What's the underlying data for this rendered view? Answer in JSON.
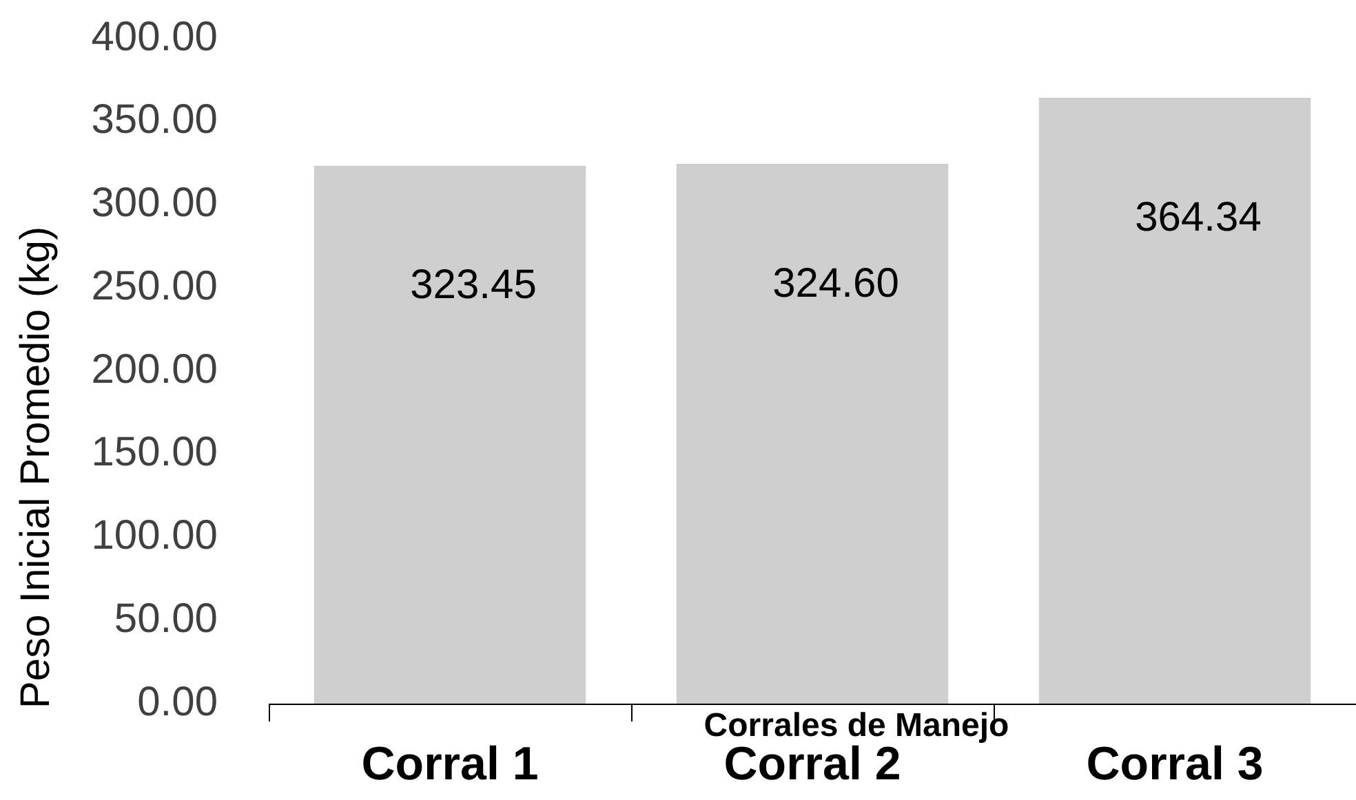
{
  "chart_data": {
    "type": "bar",
    "xlabel": "Corrales de Manejo",
    "ylabel": "Peso Inicial Promedio (kg)",
    "categories": [
      "Corral 1",
      "Corral 2",
      "Corral 3"
    ],
    "values": [
      323.45,
      324.6,
      364.34
    ],
    "value_labels": [
      "323.45",
      "324.60",
      "364.34"
    ],
    "color": "#d0cfd0",
    "ylim": [
      0,
      400
    ],
    "yticks": [
      {
        "value": 0,
        "label": "0.00"
      },
      {
        "value": 50,
        "label": "50.00"
      },
      {
        "value": 100,
        "label": "100.00"
      },
      {
        "value": 150,
        "label": "150.00"
      },
      {
        "value": 200,
        "label": "200.00"
      },
      {
        "value": 250,
        "label": "250.00"
      },
      {
        "value": 300,
        "label": "300.00"
      },
      {
        "value": 350,
        "label": "350.00"
      },
      {
        "value": 400,
        "label": "400.00"
      }
    ]
  }
}
